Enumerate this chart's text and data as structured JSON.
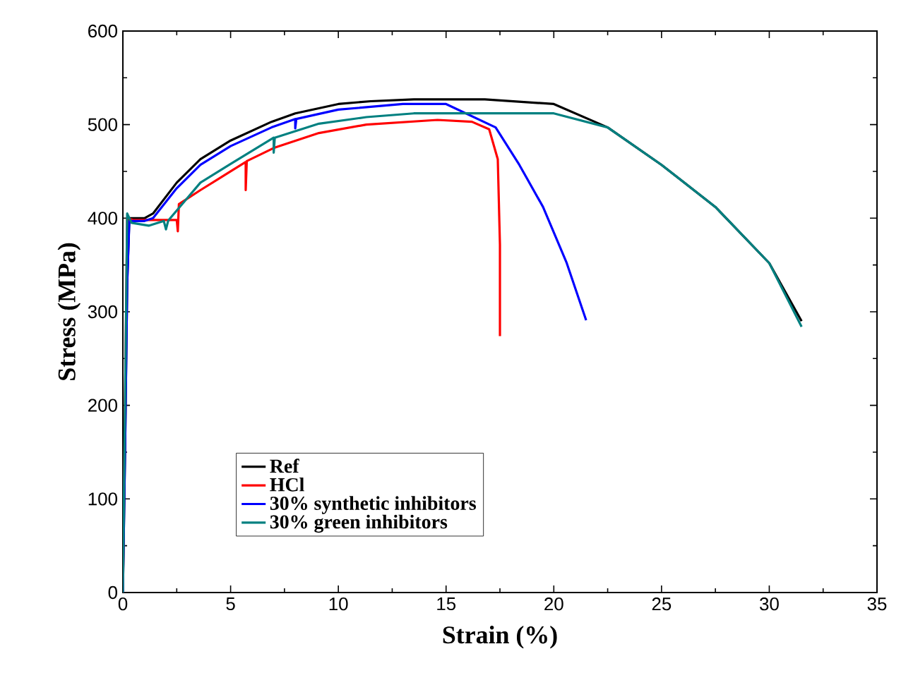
{
  "chart_data": {
    "type": "line",
    "xlabel": "Strain (%)",
    "ylabel": "Stress (MPa)",
    "xlim": [
      0,
      35
    ],
    "xticks": [
      0,
      5,
      10,
      15,
      20,
      25,
      30,
      35
    ],
    "ylim": [
      0,
      600
    ],
    "yticks": [
      0,
      100,
      200,
      300,
      400,
      500,
      600
    ],
    "legend": "bottom left",
    "line_style": "solid",
    "series": [
      {
        "name": "Ref",
        "color": "#000000",
        "x": [
          0,
          0.1,
          0.2,
          0.3,
          0.4,
          1.0,
          1.4,
          2.5,
          3.6,
          5,
          6.9,
          8,
          10,
          11.5,
          13.5,
          16.8,
          20,
          22.5,
          25,
          27.5,
          30,
          31.5
        ],
        "values": [
          0,
          150,
          330,
          400,
          400,
          400,
          405,
          438,
          463,
          483,
          503,
          512,
          522,
          525,
          527,
          527,
          522,
          497,
          457,
          412,
          352,
          290
        ]
      },
      {
        "name": "HCl",
        "color": "#ff0000",
        "x": [
          0,
          0.1,
          0.2,
          0.5,
          2.5,
          2.55,
          2.6,
          3.6,
          5,
          5.7,
          5.7,
          5.75,
          7,
          9.1,
          11.3,
          14.6,
          16.2,
          17.0,
          17.4,
          17.5,
          17.5
        ],
        "values": [
          0,
          200,
          400,
          398,
          398,
          386,
          415,
          430,
          450,
          460,
          430,
          461,
          475,
          491,
          500,
          505,
          503,
          495,
          463,
          372,
          274
        ]
      },
      {
        "name": "30% synthetic inhibitors",
        "color": "#0000ff",
        "x": [
          0,
          0.1,
          0.2,
          0.3,
          0.4,
          1.0,
          1.4,
          2.5,
          3.6,
          5,
          6.9,
          8,
          8,
          8.05,
          10,
          13,
          15,
          17.3,
          18.4,
          19.5,
          20.6,
          21.5
        ],
        "values": [
          0,
          150,
          330,
          397,
          397,
          397,
          400,
          432,
          457,
          477,
          497,
          506,
          496,
          506,
          516,
          522,
          522,
          497,
          457,
          412,
          352,
          291
        ]
      },
      {
        "name": "30% green inhibitors",
        "color": "#008080",
        "x": [
          0,
          0.1,
          0.2,
          0.4,
          1.2,
          1.9,
          2.0,
          2.1,
          2.2,
          3.6,
          5,
          7,
          7,
          7.05,
          9.1,
          11.3,
          13.5,
          20,
          22.5,
          25,
          27.5,
          30,
          31.5
        ],
        "values": [
          0,
          200,
          405,
          395,
          392,
          397,
          388,
          397,
          400,
          438,
          458,
          486,
          470,
          486,
          501,
          508,
          512,
          512,
          497,
          457,
          412,
          352,
          284
        ]
      }
    ]
  }
}
